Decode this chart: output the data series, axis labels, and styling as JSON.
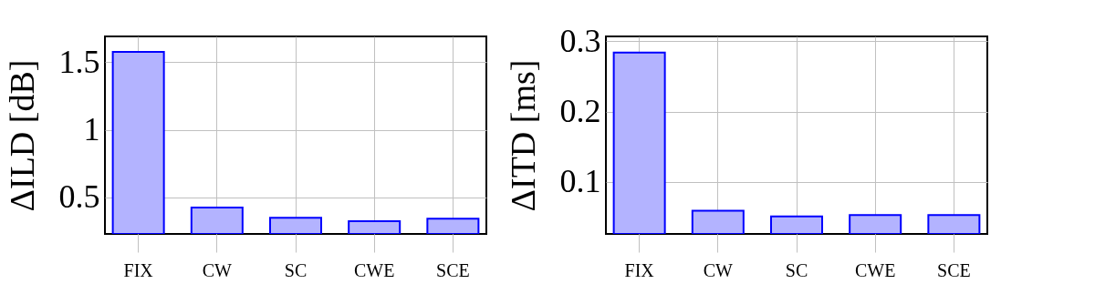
{
  "chart_data": [
    {
      "type": "bar",
      "ylabel": "ΔILD [dB]",
      "categories": [
        "FIX",
        "CW",
        "SC",
        "CWE",
        "SCE"
      ],
      "values": [
        1.575,
        0.425,
        0.35,
        0.324,
        0.343
      ],
      "color": "#b3b3ff",
      "ylim": [
        0.23,
        1.69
      ],
      "yticks": [
        0.5,
        1,
        1.5
      ],
      "grid": true
    },
    {
      "type": "bar",
      "ylabel": "ΔITD [ms]",
      "categories": [
        "FIX",
        "CW",
        "SC",
        "CWE",
        "SCE"
      ],
      "values": [
        0.284,
        0.059,
        0.051,
        0.053,
        0.053
      ],
      "color": "#b3b3ff",
      "ylim": [
        0.026,
        0.307
      ],
      "yticks": [
        0.1,
        0.2,
        0.3
      ],
      "grid": true
    }
  ]
}
